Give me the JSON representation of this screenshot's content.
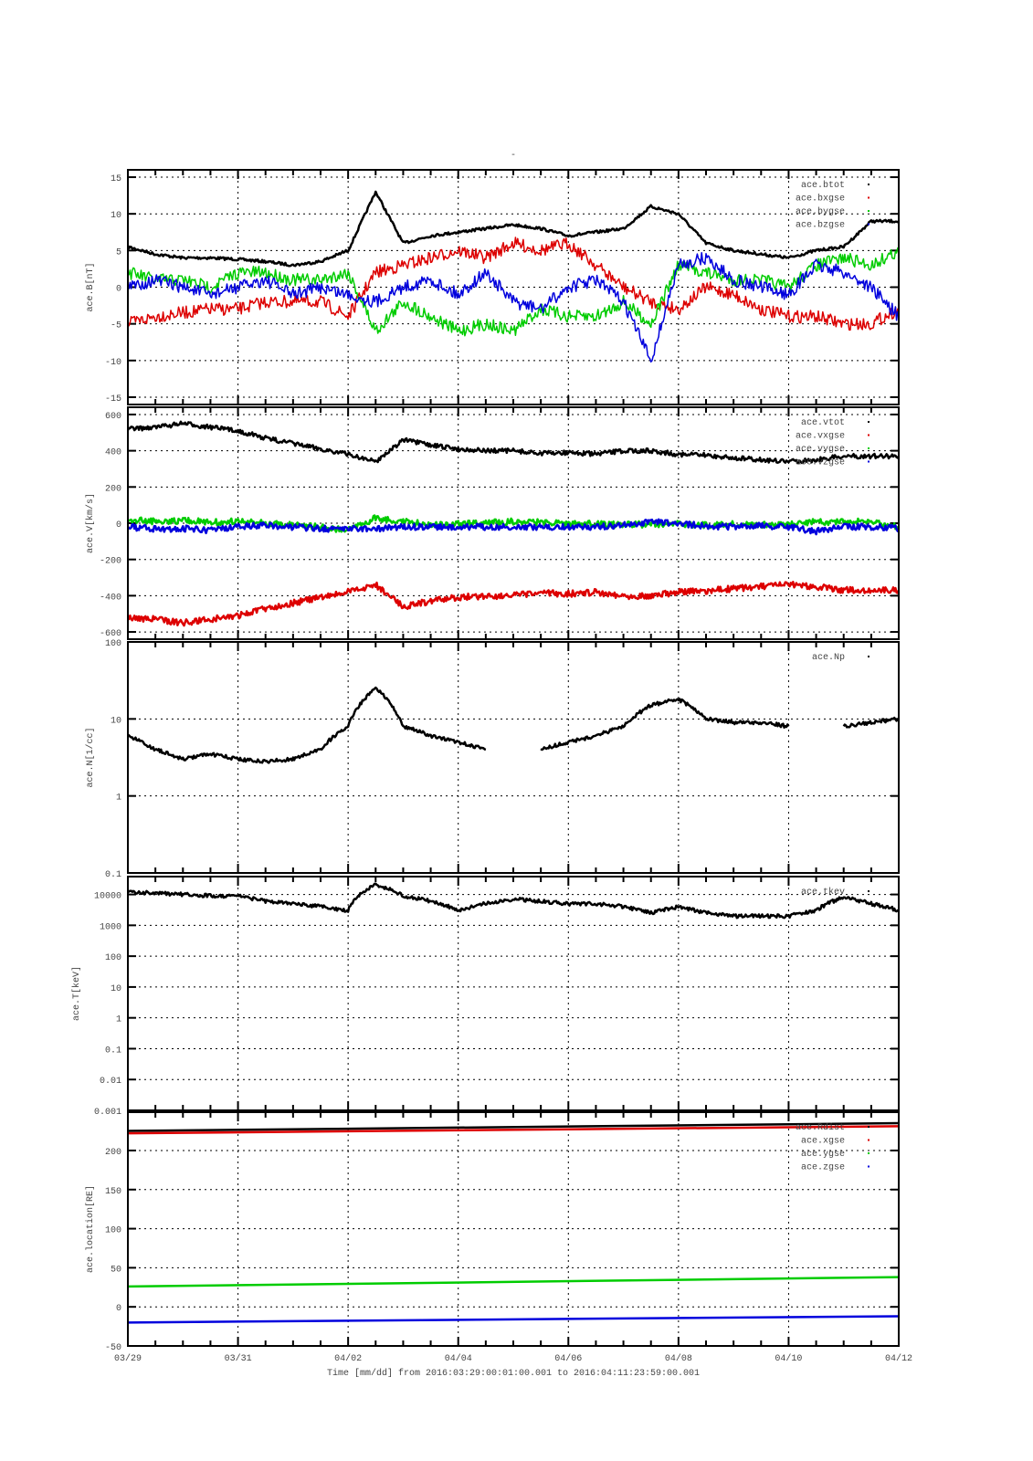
{
  "chart_data": {
    "type": "scatter",
    "title": "-",
    "xlabel": "Time [mm/dd]  from 2016:03:29:00:01:00.001  to  2016:04:11:23:59:00.001",
    "x_unit": "days since 03/29",
    "xlim": [
      0,
      14
    ],
    "x_tick_labels": [
      "03/29",
      "03/31",
      "04/02",
      "04/04",
      "04/06",
      "04/08",
      "04/10",
      "04/12"
    ],
    "x": [
      0,
      0.5,
      1,
      1.5,
      2,
      2.5,
      3,
      3.5,
      4,
      4.5,
      5,
      5.5,
      6,
      6.5,
      7,
      7.5,
      8,
      8.5,
      9,
      9.5,
      10,
      10.5,
      11,
      11.5,
      12,
      12.5,
      13,
      13.5,
      14
    ],
    "grid": true,
    "legend_position": "top-right",
    "panels": [
      {
        "ylabel": "ace.B[nT]",
        "scale": "linear",
        "ylim": [
          -16,
          16
        ],
        "yticks": [
          15,
          10,
          5,
          0,
          -5,
          -10,
          -15
        ],
        "ytick_labels": [
          "15",
          "10",
          "5",
          "0",
          "-5",
          "-10",
          "-15"
        ],
        "series": [
          {
            "name": "ace.btot",
            "color": "#000000",
            "values": [
              5.5,
              4.5,
              4,
              4,
              3.8,
              3.5,
              3,
              3.5,
              5,
              13,
              6,
              7,
              7.5,
              8,
              8.5,
              8,
              7,
              7.5,
              8,
              11,
              10,
              6,
              5,
              4.5,
              4,
              5,
              5.5,
              9,
              9
            ]
          },
          {
            "name": "ace.bxgse",
            "color": "#dd0000",
            "values": [
              -5,
              -4,
              -3.5,
              -3,
              -3,
              -2,
              -2,
              -2,
              -4,
              2,
              3,
              4,
              5,
              4,
              6,
              5,
              6,
              3,
              0,
              -2,
              -3,
              0,
              -1,
              -3,
              -4,
              -4,
              -5,
              -5,
              -3
            ]
          },
          {
            "name": "ace.bygse",
            "color": "#00cc00",
            "values": [
              2,
              1,
              1,
              0,
              2,
              2,
              1,
              1,
              2,
              -6,
              -2,
              -4,
              -6,
              -5,
              -6,
              -3,
              -4,
              -4,
              -2,
              -5,
              3,
              2,
              1,
              1,
              0,
              3,
              4,
              3,
              5
            ]
          },
          {
            "name": "ace.bzgse",
            "color": "#0000dd",
            "values": [
              0,
              1,
              0,
              -1,
              0,
              1,
              -1,
              0,
              -1,
              -2,
              0,
              1,
              -1,
              2,
              -2,
              -3,
              0,
              1,
              -2,
              -10,
              3,
              4,
              1,
              0,
              -1,
              3,
              2,
              0,
              -4
            ]
          }
        ]
      },
      {
        "ylabel": "ace.V[km/s]",
        "scale": "linear",
        "ylim": [
          -640,
          640
        ],
        "yticks": [
          600,
          400,
          200,
          0,
          -200,
          -400,
          -600
        ],
        "ytick_labels": [
          "600",
          "400",
          "200",
          "0",
          "-200",
          "-400",
          "-600"
        ],
        "series": [
          {
            "name": "ace.vtot",
            "color": "#000000",
            "values": [
              520,
              530,
              550,
              530,
              510,
              470,
              440,
              410,
              380,
              340,
              460,
              430,
              410,
              400,
              400,
              385,
              390,
              380,
              400,
              400,
              380,
              375,
              360,
              350,
              340,
              350,
              370,
              370,
              370
            ]
          },
          {
            "name": "ace.vxgse",
            "color": "#dd0000",
            "values": [
              -520,
              -530,
              -550,
              -530,
              -510,
              -470,
              -440,
              -410,
              -380,
              -340,
              -460,
              -430,
              -410,
              -400,
              -400,
              -385,
              -390,
              -380,
              -400,
              -400,
              -380,
              -375,
              -360,
              -350,
              -340,
              -350,
              -370,
              -370,
              -370
            ]
          },
          {
            "name": "ace.vygse",
            "color": "#00cc00",
            "values": [
              20,
              10,
              15,
              5,
              10,
              0,
              -10,
              -20,
              -40,
              30,
              10,
              -10,
              -5,
              0,
              10,
              5,
              0,
              -5,
              -10,
              -5,
              -5,
              -10,
              -5,
              -10,
              -10,
              10,
              5,
              10,
              -20
            ]
          },
          {
            "name": "ace.vzgse",
            "color": "#0000dd",
            "values": [
              -20,
              -30,
              -30,
              -40,
              -20,
              -10,
              -20,
              -30,
              -30,
              -30,
              -20,
              -20,
              -20,
              -20,
              -20,
              -20,
              -20,
              -20,
              -10,
              10,
              0,
              -15,
              -20,
              -15,
              -20,
              -45,
              -20,
              -20,
              -30
            ]
          }
        ]
      },
      {
        "ylabel": "ace.N[1/cc]",
        "scale": "log",
        "ylim": [
          0.1,
          100
        ],
        "yticks": [
          100,
          10,
          1,
          0.1
        ],
        "ytick_labels": [
          "100",
          "10",
          "1",
          "0.1"
        ],
        "series": [
          {
            "name": "ace.Np",
            "color": "#000000",
            "values": [
              6,
              4,
              3,
              3.5,
              3,
              2.8,
              3,
              4,
              8,
              25,
              8,
              6,
              5,
              4,
              null,
              4,
              5,
              6,
              8,
              15,
              18,
              10,
              9,
              9,
              8,
              null,
              8,
              9,
              10
            ]
          }
        ]
      },
      {
        "ylabel": "ace.T[keV]",
        "scale": "log",
        "ylim": [
          0.001,
          38000
        ],
        "yticks": [
          10000,
          1000,
          100,
          10,
          1,
          0.1,
          0.01,
          0.001
        ],
        "ytick_labels": [
          "10000",
          "1000",
          "100",
          "10",
          "1",
          "0.1",
          "0.01",
          "0.001"
        ],
        "series": [
          {
            "name": "ace.tkev",
            "color": "#000000",
            "values": [
              12000,
              11000,
              10000,
              9000,
              9000,
              6000,
              5000,
              4000,
              3000,
              20000,
              9000,
              6000,
              3000,
              5000,
              7000,
              6000,
              5000,
              5000,
              4000,
              2500,
              4000,
              2500,
              2000,
              2000,
              2000,
              3000,
              8000,
              5000,
              3000
            ]
          }
        ]
      },
      {
        "ylabel": "ace.location[RE]",
        "scale": "linear",
        "ylim": [
          -50,
          249
        ],
        "yticks": [
          200,
          150,
          100,
          50,
          0,
          -50
        ],
        "ytick_labels": [
          "200",
          "150",
          "100",
          "50",
          "0",
          "-50"
        ],
        "series": [
          {
            "name": "ace.Rdist",
            "color": "#000000",
            "endpoints": [
              225,
              235
            ]
          },
          {
            "name": "ace.xgse",
            "color": "#dd0000",
            "endpoints": [
              222,
              231
            ]
          },
          {
            "name": "ace.ygse",
            "color": "#00cc00",
            "endpoints": [
              26,
              38
            ]
          },
          {
            "name": "ace.zgse",
            "color": "#0000dd",
            "endpoints": [
              -20,
              -12
            ]
          }
        ]
      }
    ]
  }
}
